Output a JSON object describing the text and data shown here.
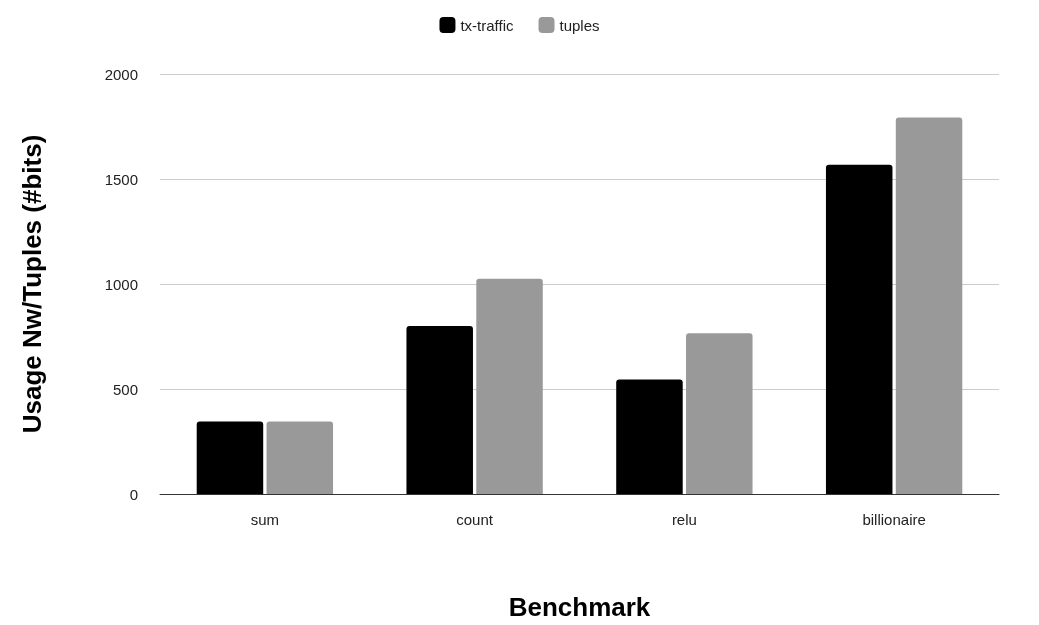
{
  "chart_data": {
    "type": "bar",
    "xlabel": "Benchmark",
    "ylabel": "Usage Nw/Tuples (#bits)",
    "categories": [
      "sum",
      "count",
      "relu",
      "billionaire"
    ],
    "series": [
      {
        "name": "tx-traffic",
        "color": "#000000",
        "values": [
          345,
          800,
          545,
          1568
        ]
      },
      {
        "name": "tuples",
        "color": "#999999",
        "values": [
          345,
          1025,
          765,
          1793
        ]
      }
    ],
    "ylim": [
      0,
      2000
    ],
    "yticks": [
      0,
      500,
      1000,
      1500,
      2000
    ],
    "grid": "y",
    "legend": "top"
  }
}
